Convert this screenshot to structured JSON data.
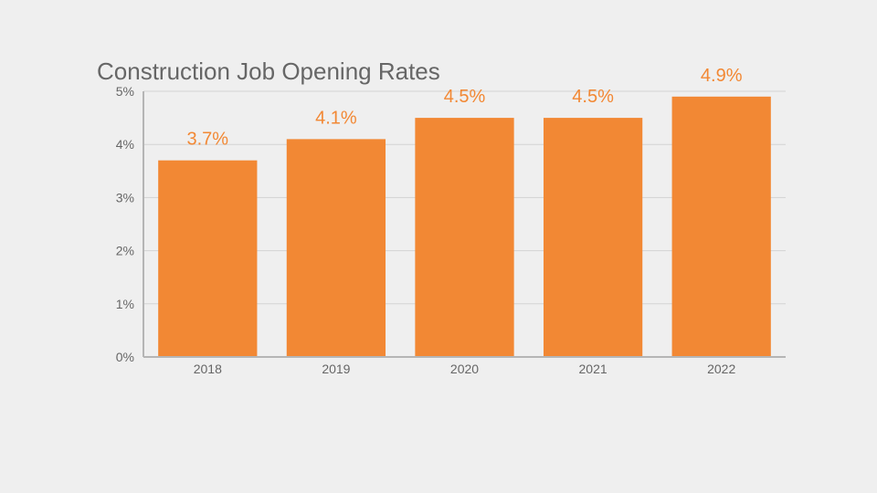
{
  "chart_data": {
    "type": "bar",
    "title": "Construction Job Opening Rates",
    "xlabel": "",
    "ylabel": "",
    "categories": [
      "2018",
      "2019",
      "2020",
      "2021",
      "2022"
    ],
    "values": [
      3.7,
      4.1,
      4.5,
      4.5,
      4.9
    ],
    "data_labels": [
      "3.7%",
      "4.1%",
      "4.5%",
      "4.5%",
      "4.9%"
    ],
    "ylim": [
      0,
      5
    ],
    "y_ticks": [
      0,
      1,
      2,
      3,
      4,
      5
    ],
    "y_tick_labels": [
      "0%",
      "1%",
      "2%",
      "3%",
      "4%",
      "5%"
    ],
    "grid": true,
    "legend": "none",
    "bar_color": "#f28834",
    "label_color": "#f28834",
    "grid_color": "#d3d3d3",
    "axis_color": "#b5b5b5"
  }
}
